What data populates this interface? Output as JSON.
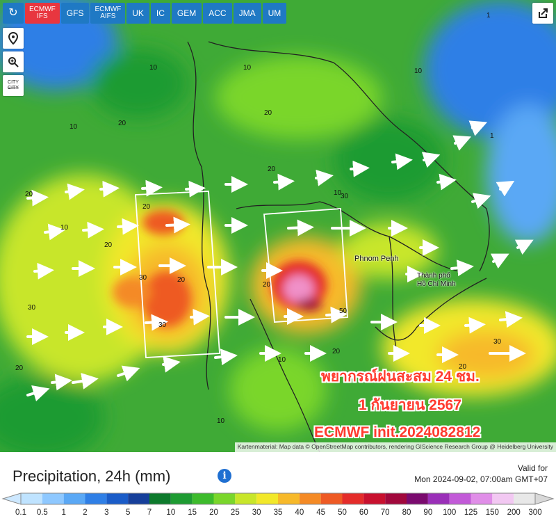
{
  "model_tabs": [
    {
      "label": "ECMWF",
      "sub": "IFS",
      "active": true
    },
    {
      "label": "GFS",
      "sub": "",
      "active": false
    },
    {
      "label": "ECMWF",
      "sub": "AIFS",
      "active": false
    },
    {
      "label": "UK",
      "sub": "",
      "active": false
    },
    {
      "label": "IC",
      "sub": "",
      "active": false
    },
    {
      "label": "GEM",
      "sub": "",
      "active": false
    },
    {
      "label": "ACC",
      "sub": "",
      "active": false
    },
    {
      "label": "JMA",
      "sub": "",
      "active": false
    },
    {
      "label": "UM",
      "sub": "",
      "active": false
    }
  ],
  "side_buttons": {
    "city_label_top": "CITY",
    "city_label_bottom": "CITY"
  },
  "icons": {
    "refresh": "refresh-icon",
    "location": "location-pin-icon",
    "zoom": "zoom-icon",
    "share": "share-icon"
  },
  "map": {
    "places": [
      "Phnom Penh",
      "Thành phố",
      "Hồ Chí Minh"
    ],
    "contour_labels": [
      "20",
      "10",
      "20",
      "10",
      "20",
      "30",
      "20",
      "30",
      "10",
      "20",
      "30",
      "20",
      "50",
      "10",
      "20",
      "30",
      "20",
      "10",
      "20",
      "30",
      "20",
      "10",
      "10",
      "20",
      "10",
      "1",
      "1"
    ],
    "overlay_line1": "พยากรณ์ฝนสะสม 24 ชม.",
    "overlay_line2": "1 กันยายน 2567",
    "overlay_line3": "ECMWF init.2024082812",
    "attribution": "Kartenmaterial: Map data © OpenStreetMap contributors, rendering GIScience Research Group @ Heidelberg University"
  },
  "legend": {
    "title": "Precipitation, 24h (mm)",
    "valid_for": "Valid for",
    "valid_time": "Mon 2024-09-02, 07:00am GMT+07",
    "ticks": [
      "0.1",
      "0.5",
      "1",
      "2",
      "3",
      "5",
      "7",
      "10",
      "15",
      "20",
      "25",
      "30",
      "35",
      "40",
      "45",
      "50",
      "60",
      "70",
      "80",
      "90",
      "100",
      "125",
      "150",
      "200",
      "300"
    ],
    "colors": [
      "#bfe3ff",
      "#8ec8ff",
      "#5aa8f5",
      "#2f7fe6",
      "#1a5cc8",
      "#163f9a",
      "#0d7a2c",
      "#1e9b32",
      "#3dbb2c",
      "#7ad62b",
      "#c8e62a",
      "#f2e82a",
      "#f7b92a",
      "#f48a25",
      "#ee5a24",
      "#e42c2a",
      "#c8102e",
      "#a1083c",
      "#7a0a6e",
      "#9a2fb8",
      "#c25ad8",
      "#e08ee8",
      "#f2c8f2",
      "#e8e8e8"
    ]
  },
  "colors": {
    "tab_blue": "#1f79c4",
    "tab_active": "#e8363f",
    "overlay_red": "#ff3b2f"
  }
}
